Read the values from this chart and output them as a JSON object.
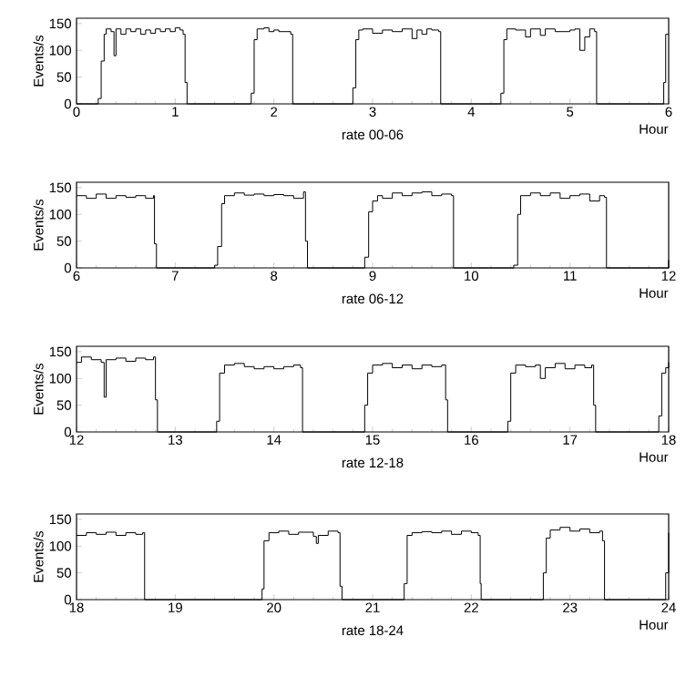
{
  "chart_data": [
    {
      "type": "step",
      "title": "rate 00-06",
      "xlabel": "Hour",
      "ylabel": "Events/s",
      "xlim": [
        0,
        6
      ],
      "xticks": [
        0,
        1,
        2,
        3,
        4,
        5,
        6
      ],
      "ylim": [
        0,
        160
      ],
      "yticks": [
        0,
        50,
        100,
        150
      ],
      "series": [
        {
          "color": "#000000",
          "x": [
            0,
            0.2,
            0.22,
            0.25,
            0.28,
            0.3,
            0.35,
            0.38,
            0.4,
            0.45,
            0.5,
            0.55,
            0.6,
            0.65,
            0.7,
            0.75,
            0.8,
            0.85,
            0.9,
            0.95,
            1.0,
            1.05,
            1.08,
            1.1,
            1.12,
            1.75,
            1.77,
            1.8,
            1.83,
            1.9,
            1.95,
            2.0,
            2.05,
            2.1,
            2.17,
            2.19,
            2.78,
            2.8,
            2.83,
            2.86,
            2.9,
            3.0,
            3.1,
            3.2,
            3.3,
            3.4,
            3.45,
            3.5,
            3.55,
            3.6,
            3.67,
            3.69,
            4.28,
            4.3,
            4.33,
            4.36,
            4.45,
            4.55,
            4.6,
            4.7,
            4.75,
            4.85,
            5.0,
            5.05,
            5.1,
            5.15,
            5.2,
            5.25,
            5.27,
            5.92,
            5.95,
            5.97,
            6.0
          ],
          "values": [
            0,
            0,
            10,
            80,
            130,
            140,
            135,
            90,
            140,
            130,
            140,
            135,
            140,
            130,
            138,
            132,
            140,
            135,
            140,
            135,
            142,
            138,
            130,
            40,
            0,
            0,
            20,
            120,
            140,
            142,
            135,
            138,
            135,
            135,
            130,
            0,
            0,
            30,
            120,
            138,
            140,
            132,
            138,
            135,
            140,
            122,
            138,
            130,
            140,
            138,
            135,
            0,
            0,
            20,
            120,
            140,
            138,
            125,
            140,
            128,
            140,
            135,
            138,
            140,
            100,
            125,
            140,
            135,
            0,
            0,
            40,
            130,
            130
          ]
        }
      ]
    },
    {
      "type": "step",
      "title": "rate 06-12",
      "xlabel": "Hour",
      "ylabel": "Events/s",
      "xlim": [
        6,
        12
      ],
      "xticks": [
        6,
        7,
        8,
        9,
        10,
        11,
        12
      ],
      "ylim": [
        0,
        160
      ],
      "yticks": [
        0,
        50,
        100,
        150
      ],
      "series": [
        {
          "color": "#000000",
          "x": [
            6.0,
            6.1,
            6.2,
            6.3,
            6.4,
            6.5,
            6.6,
            6.7,
            6.78,
            6.79,
            6.81,
            7.38,
            7.4,
            7.43,
            7.47,
            7.5,
            7.6,
            7.7,
            7.8,
            7.9,
            8.0,
            8.1,
            8.2,
            8.3,
            8.32,
            8.34,
            8.88,
            8.92,
            8.96,
            9.0,
            9.05,
            9.1,
            9.2,
            9.3,
            9.4,
            9.5,
            9.6,
            9.7,
            9.8,
            9.82,
            10.4,
            10.43,
            10.47,
            10.5,
            10.6,
            10.7,
            10.8,
            10.9,
            11.0,
            11.1,
            11.2,
            11.3,
            11.35,
            11.37,
            11.95,
            12.0
          ],
          "values": [
            135,
            130,
            138,
            130,
            135,
            132,
            135,
            130,
            135,
            45,
            0,
            0,
            5,
            40,
            120,
            135,
            140,
            136,
            138,
            135,
            137,
            135,
            130,
            142,
            50,
            0,
            0,
            20,
            105,
            125,
            135,
            130,
            140,
            135,
            140,
            142,
            135,
            138,
            135,
            0,
            0,
            5,
            100,
            135,
            140,
            135,
            140,
            130,
            135,
            138,
            125,
            135,
            132,
            0,
            0,
            15
          ]
        }
      ]
    },
    {
      "type": "step",
      "title": "rate 12-18",
      "xlabel": "Hour",
      "ylabel": "Events/s",
      "xlim": [
        12,
        18
      ],
      "xticks": [
        12,
        13,
        14,
        15,
        16,
        17,
        18
      ],
      "ylim": [
        0,
        160
      ],
      "yticks": [
        0,
        50,
        100,
        150
      ],
      "series": [
        {
          "color": "#000000",
          "x": [
            12.0,
            12.05,
            12.15,
            12.25,
            12.28,
            12.3,
            12.4,
            12.5,
            12.6,
            12.7,
            12.78,
            12.8,
            12.82,
            13.38,
            13.42,
            13.45,
            13.5,
            13.6,
            13.7,
            13.8,
            13.9,
            14.0,
            14.1,
            14.2,
            14.27,
            14.29,
            14.88,
            14.92,
            14.95,
            15.0,
            15.1,
            15.2,
            15.3,
            15.4,
            15.5,
            15.6,
            15.7,
            15.74,
            15.76,
            16.33,
            16.37,
            16.4,
            16.45,
            16.55,
            16.65,
            16.7,
            16.75,
            16.85,
            16.95,
            17.05,
            17.15,
            17.22,
            17.24,
            17.26,
            17.85,
            17.9,
            17.93,
            17.97,
            18.0
          ],
          "values": [
            130,
            140,
            135,
            130,
            65,
            135,
            138,
            132,
            138,
            135,
            140,
            60,
            0,
            0,
            20,
            110,
            125,
            128,
            122,
            118,
            122,
            118,
            122,
            125,
            120,
            0,
            0,
            50,
            110,
            125,
            128,
            120,
            125,
            118,
            125,
            122,
            125,
            60,
            0,
            0,
            20,
            110,
            125,
            122,
            125,
            100,
            120,
            128,
            118,
            125,
            120,
            125,
            50,
            0,
            0,
            30,
            110,
            120,
            130
          ]
        }
      ]
    },
    {
      "type": "step",
      "title": "rate 18-24",
      "xlabel": "Hour",
      "ylabel": "Events/s",
      "xlim": [
        18,
        24
      ],
      "xticks": [
        18,
        19,
        20,
        21,
        22,
        23,
        24
      ],
      "ylim": [
        0,
        160
      ],
      "yticks": [
        0,
        50,
        100,
        150
      ],
      "series": [
        {
          "color": "#000000",
          "x": [
            18.0,
            18.1,
            18.2,
            18.3,
            18.4,
            18.5,
            18.6,
            18.67,
            18.69,
            19.85,
            19.88,
            19.9,
            19.95,
            20.05,
            20.15,
            20.25,
            20.4,
            20.43,
            20.45,
            20.55,
            20.65,
            20.67,
            20.69,
            21.28,
            21.32,
            21.35,
            21.4,
            21.5,
            21.6,
            21.7,
            21.8,
            21.9,
            22.0,
            22.07,
            22.09,
            22.1,
            22.7,
            22.73,
            22.76,
            22.8,
            22.9,
            23.0,
            23.1,
            23.2,
            23.3,
            23.33,
            23.35,
            23.95,
            23.97,
            24.0
          ],
          "values": [
            120,
            125,
            122,
            126,
            120,
            125,
            122,
            125,
            0,
            0,
            20,
            110,
            125,
            128,
            122,
            126,
            118,
            105,
            120,
            128,
            125,
            25,
            0,
            0,
            30,
            120,
            125,
            127,
            125,
            128,
            122,
            128,
            125,
            120,
            30,
            0,
            0,
            50,
            115,
            130,
            135,
            128,
            132,
            125,
            128,
            110,
            0,
            0,
            50,
            125
          ]
        }
      ]
    }
  ]
}
